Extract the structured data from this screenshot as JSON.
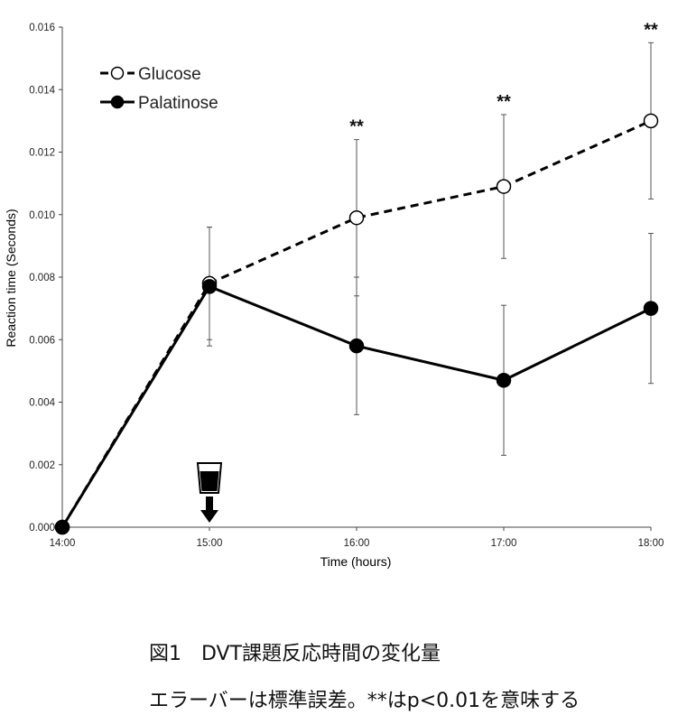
{
  "chart_data": {
    "type": "line",
    "xlabel": "Time (hours)",
    "ylabel": "Reaction time (Seconds)",
    "x_ticks": [
      "14:00",
      "15:00",
      "16:00",
      "17:00",
      "18:00"
    ],
    "y_ticks": [
      "0.000",
      "0.002",
      "0.004",
      "0.006",
      "0.008",
      "0.010",
      "0.012",
      "0.014",
      "0.016"
    ],
    "ylim": [
      0,
      0.016
    ],
    "legend_position": "top-left",
    "series": [
      {
        "name": "Glucose",
        "style": "dashed",
        "marker": "open-circle",
        "x": [
          "14:00",
          "15:00",
          "16:00",
          "17:00",
          "18:00"
        ],
        "values": [
          0.0,
          0.0078,
          0.0099,
          0.0109,
          0.013
        ],
        "error": [
          0.0,
          0.0018,
          0.0025,
          0.0023,
          0.0025
        ]
      },
      {
        "name": "Palatinose",
        "style": "solid",
        "marker": "filled-circle",
        "x": [
          "14:00",
          "15:00",
          "16:00",
          "17:00",
          "18:00"
        ],
        "values": [
          0.0,
          0.0077,
          0.0058,
          0.0047,
          0.007
        ],
        "error": [
          0.0,
          0.0019,
          0.0022,
          0.0024,
          0.0024
        ]
      }
    ],
    "annotations": [
      {
        "x": "16:00",
        "text": "**"
      },
      {
        "x": "17:00",
        "text": "**"
      },
      {
        "x": "18:00",
        "text": "**"
      }
    ],
    "intake_marker": {
      "x": "15:00",
      "icon": "drink-cup-icon"
    }
  },
  "caption": {
    "title": "図1　DVT課題反応時間の変化量",
    "note": "エラーバーは標準誤差。**はp<0.01を意味する"
  },
  "colors": {
    "line": "#000000",
    "open_marker_fill": "#ffffff",
    "error_bar": "#555555"
  }
}
